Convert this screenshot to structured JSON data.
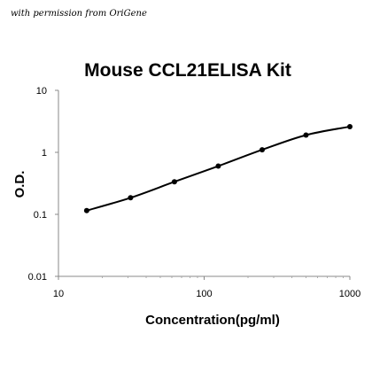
{
  "credit": "with permission from OriGene",
  "chart_data": {
    "type": "line",
    "title": "Mouse CCL21ELISA Kit",
    "xlabel": "Concentration(pg/ml)",
    "ylabel": "O.D.",
    "x_scale": "log",
    "y_scale": "log",
    "xlim": [
      10,
      1000
    ],
    "ylim": [
      0.01,
      10
    ],
    "x_ticks": [
      10,
      100,
      1000
    ],
    "x_tick_labels": [
      "10",
      "100",
      "1000"
    ],
    "y_ticks": [
      0.01,
      0.1,
      1,
      10
    ],
    "y_tick_labels": [
      "0.01",
      "0.1",
      "1",
      "10"
    ],
    "grid": false,
    "legend": "none",
    "line_color": "#000000",
    "series": [
      {
        "x": [
          15.625,
          31.25,
          62.5,
          125,
          250,
          500,
          1000
        ],
        "y": [
          0.115,
          0.185,
          0.335,
          0.6,
          1.1,
          1.9,
          2.6
        ]
      }
    ]
  }
}
